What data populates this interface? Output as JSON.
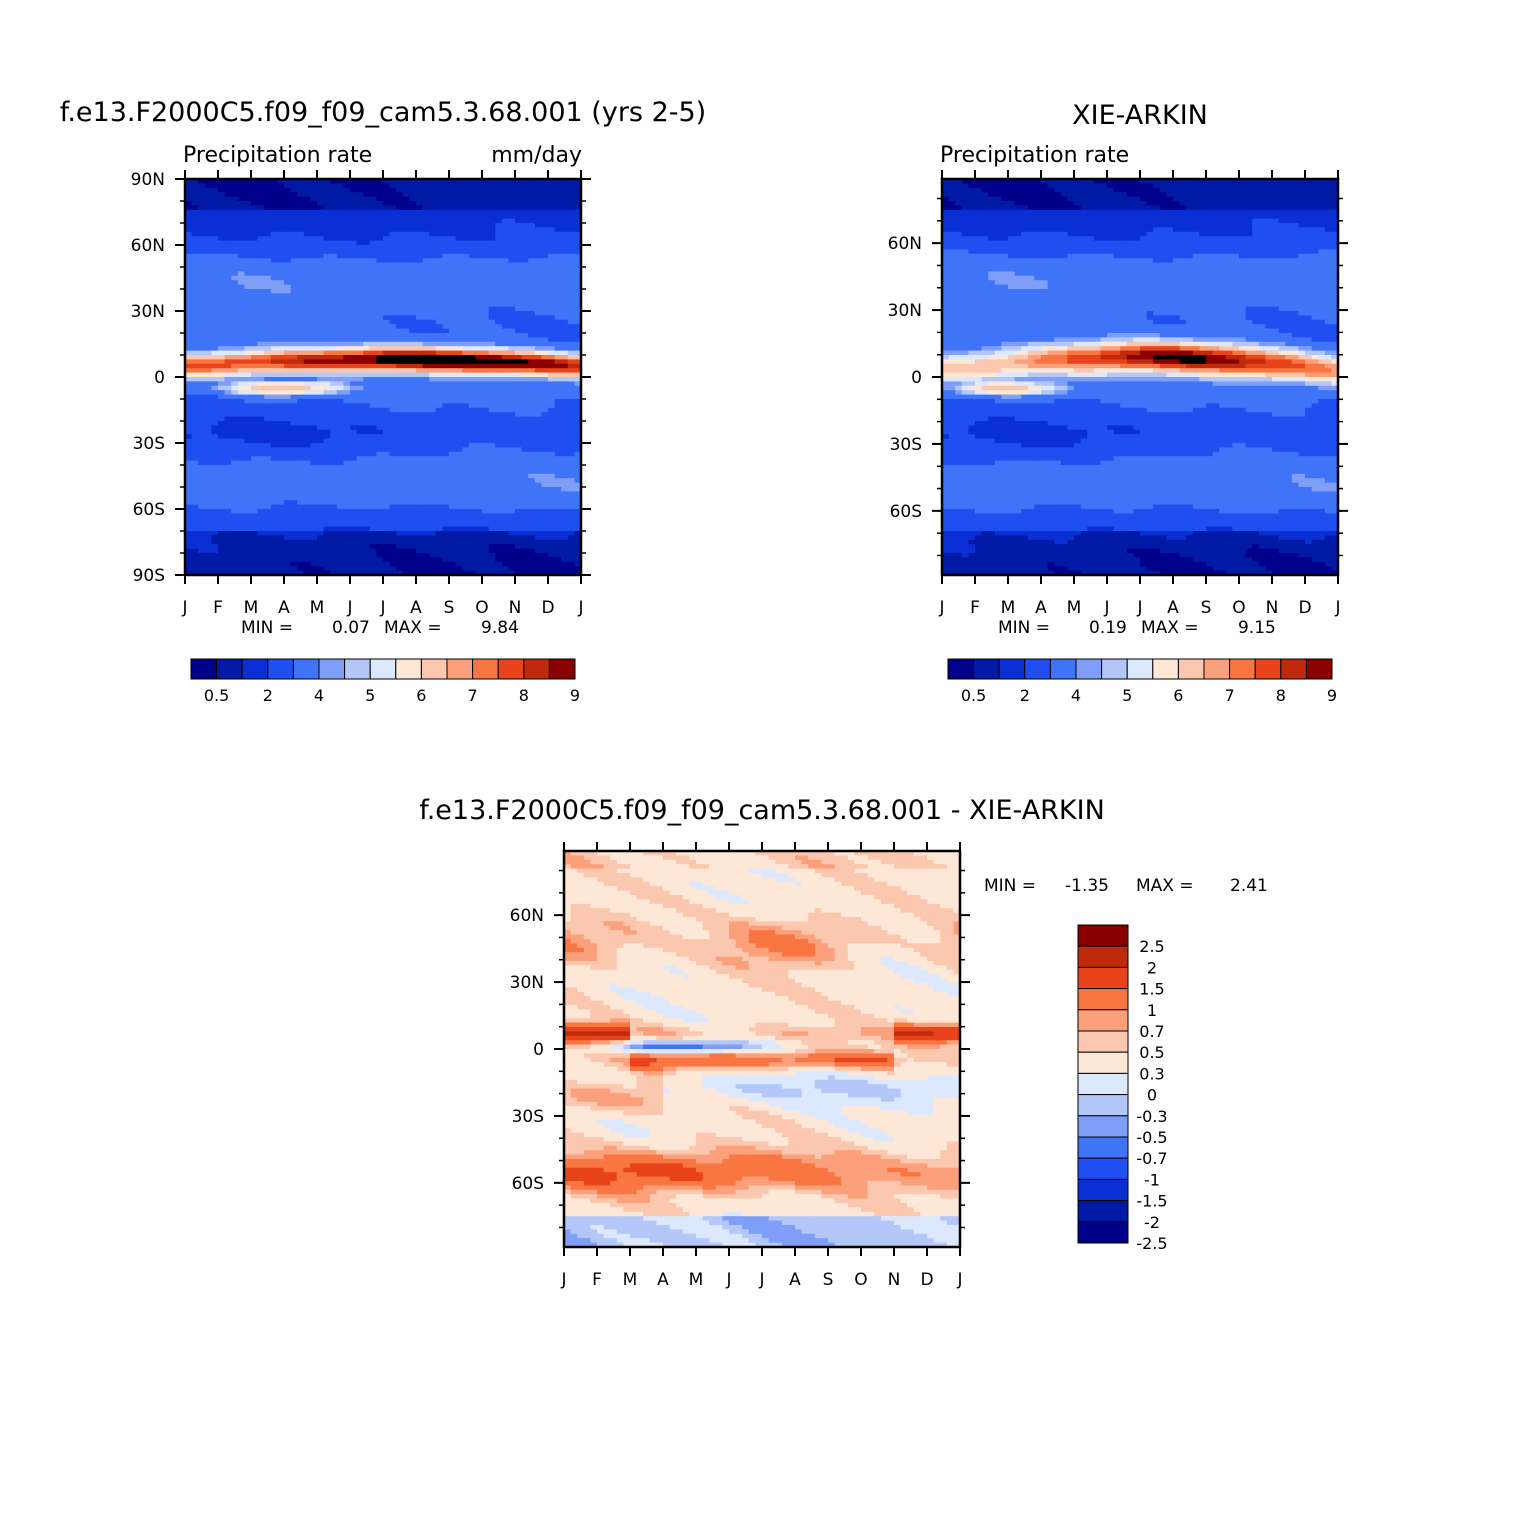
{
  "chart_data": [
    {
      "type": "heatmap",
      "title": "f.e13.F2000C5.f09_f09_cam5.3.68.001 (yrs 2-5)",
      "left_label": "Precipitation rate",
      "right_label": "mm/day",
      "x_ticks": [
        "J",
        "F",
        "M",
        "A",
        "M",
        "J",
        "J",
        "A",
        "S",
        "O",
        "N",
        "D",
        "J"
      ],
      "y_ticks": [
        "90N",
        "60N",
        "30N",
        "0",
        "30S",
        "60S",
        "90S"
      ],
      "y_values": [
        90,
        60,
        30,
        0,
        -30,
        -60,
        -90
      ],
      "ylim": [
        -90,
        90
      ],
      "x_months": 12,
      "stats": {
        "min_label": "MIN =",
        "min": "0.07",
        "max_label": "MAX =",
        "max": "9.84"
      },
      "contour_levels": [
        0.5,
        1,
        2,
        3,
        4,
        4.5,
        5,
        5.5,
        6,
        6.5,
        7,
        7.5,
        8,
        8.5,
        9
      ],
      "colorbar_labels": [
        "0.5",
        "2",
        "4",
        "5",
        "6",
        "7",
        "8",
        "9"
      ],
      "itcz": {
        "start_lat": 5,
        "end_lat": 5,
        "peak_lat": 8,
        "peak_month": 8,
        "peak": 9.8,
        "base": 7.5,
        "width": 4
      },
      "south_band": {
        "lat": -5,
        "month_center": 3,
        "peak": 6.5
      },
      "grid": false,
      "colorbar_position": "bottom"
    },
    {
      "type": "heatmap",
      "title": "XIE-ARKIN",
      "left_label": "Precipitation rate",
      "right_label": "",
      "x_ticks": [
        "J",
        "F",
        "M",
        "A",
        "M",
        "J",
        "J",
        "A",
        "S",
        "O",
        "N",
        "D",
        "J"
      ],
      "y_ticks": [
        "60N",
        "30N",
        "0",
        "30S",
        "60S"
      ],
      "y_values": [
        60,
        30,
        0,
        -30,
        -60
      ],
      "ylim": [
        -88.75,
        88.75
      ],
      "x_months": 12,
      "stats": {
        "min_label": "MIN =",
        "min": "0.19",
        "max_label": "MAX =",
        "max": "9.15"
      },
      "contour_levels": [
        0.5,
        1,
        2,
        3,
        4,
        4.5,
        5,
        5.5,
        6,
        6.5,
        7,
        7.5,
        8,
        8.5,
        9
      ],
      "colorbar_labels": [
        "0.5",
        "2",
        "4",
        "5",
        "6",
        "7",
        "8",
        "9"
      ],
      "itcz": {
        "start_lat": 3,
        "end_lat": 3,
        "peak_lat": 9,
        "peak_month": 7.5,
        "peak": 9.1,
        "base": 6,
        "width": 5
      },
      "south_band": {
        "lat": -5,
        "month_center": 2,
        "peak": 6.2
      },
      "grid": false,
      "colorbar_position": "bottom"
    },
    {
      "type": "heatmap",
      "title": "f.e13.F2000C5.f09_f09_cam5.3.68.001 - XIE-ARKIN",
      "x_ticks": [
        "J",
        "F",
        "M",
        "A",
        "M",
        "J",
        "J",
        "A",
        "S",
        "O",
        "N",
        "D",
        "J"
      ],
      "y_ticks": [
        "60N",
        "30N",
        "0",
        "30S",
        "60S"
      ],
      "y_values": [
        60,
        30,
        0,
        -30,
        -60
      ],
      "ylim": [
        -88.75,
        88.75
      ],
      "x_months": 12,
      "stats": {
        "min_label": "MIN =",
        "min": "-1.35",
        "max_label": "MAX =",
        "max": "2.41"
      },
      "contour_levels": [
        -2.5,
        -2,
        -1.5,
        -1,
        -0.7,
        -0.5,
        -0.3,
        0,
        0.3,
        0.5,
        0.7,
        1,
        1.5,
        2,
        2.5
      ],
      "colorbar_labels": [
        "2.5",
        "2",
        "1.5",
        "1",
        "0.7",
        "0.5",
        "0.3",
        "0",
        "-0.3",
        "-0.5",
        "-0.7",
        "-1",
        "-1.5",
        "-2",
        "-2.5"
      ],
      "grid": false,
      "colorbar_position": "right"
    }
  ],
  "palette": [
    "#00008a",
    "#001aa6",
    "#0a2fd4",
    "#1f4ff0",
    "#3f74f8",
    "#7f9ef8",
    "#b3c7f8",
    "#dbe8fd",
    "#fde8d8",
    "#fbc7ae",
    "#fba07a",
    "#f97541",
    "#e8431b",
    "#c02a0c",
    "#8a0000"
  ]
}
